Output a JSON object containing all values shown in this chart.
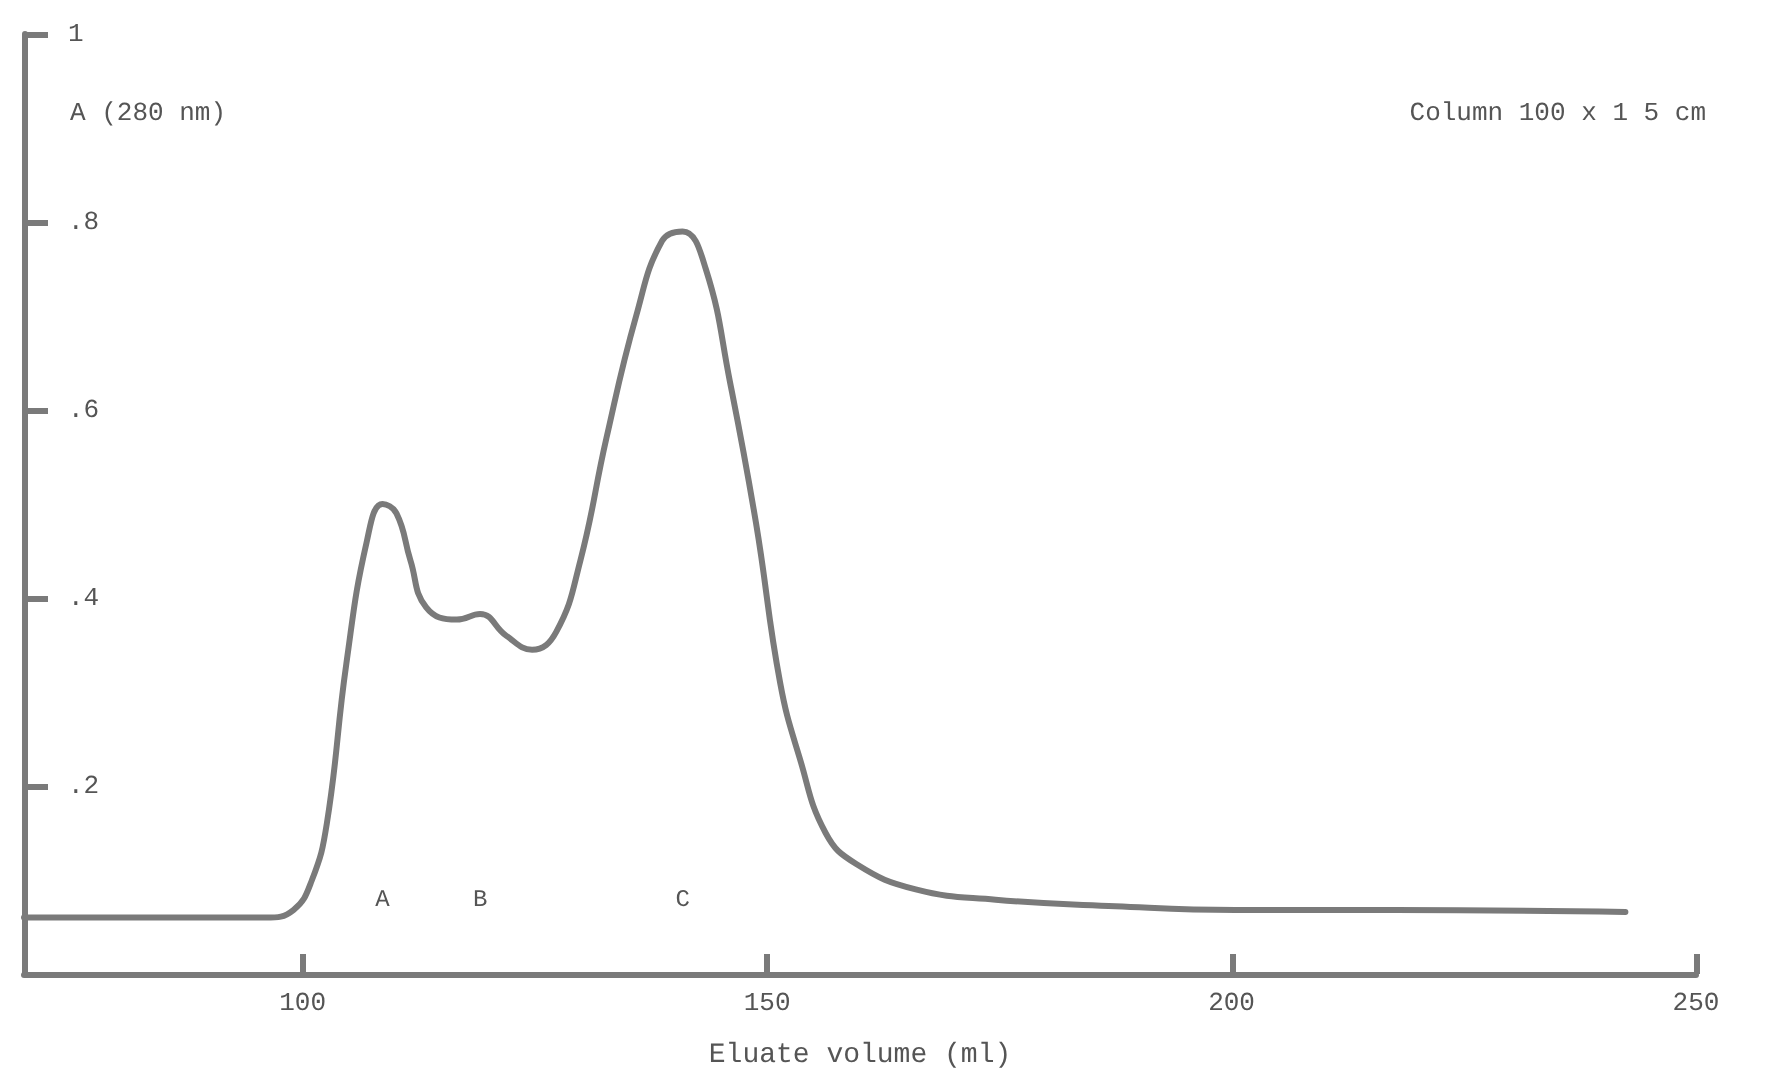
{
  "chart_data": {
    "type": "line",
    "xlabel": "Eluate volume (ml)",
    "ylabel": "A (280 nm)",
    "xlim": [
      70,
      250
    ],
    "xticks": [
      100,
      150,
      200,
      250
    ],
    "ylim": [
      0,
      1
    ],
    "yticks": [
      {
        "value": 0.2,
        "label": ".2"
      },
      {
        "value": 0.4,
        "label": ".4"
      },
      {
        "value": 0.6,
        "label": ".6"
      },
      {
        "value": 0.8,
        "label": ".8"
      },
      1
    ],
    "grid": false,
    "marker": "none",
    "line_style": "solid",
    "series": [
      {
        "color": "#7a7a7a",
        "x": [
          70,
          96,
          99,
          101,
          102.6,
          104.7,
          106.9,
          108.6,
          110.1,
          111.6,
          113.3,
          116.6,
          119.1,
          121.9,
          124.7,
          127.3,
          129.9,
          132.7,
          135.9,
          138.7,
          140.9,
          143.4,
          146,
          148.8,
          151.4,
          153.5,
          156.3,
          159.6,
          166,
          174.6,
          187.5,
          200.4,
          217.6,
          242.4
        ],
        "values": [
          0.06,
          0.06,
          0.068,
          0.1,
          0.16,
          0.33,
          0.46,
          0.5,
          0.49,
          0.44,
          0.39,
          0.377,
          0.383,
          0.36,
          0.345,
          0.364,
          0.44,
          0.57,
          0.7,
          0.78,
          0.79,
          0.75,
          0.63,
          0.48,
          0.31,
          0.23,
          0.15,
          0.117,
          0.09,
          0.079,
          0.072,
          0.068,
          0.068,
          0.066
        ]
      }
    ],
    "annotations": [
      "A",
      "B",
      "C",
      "Column 100 x 1 5 cm"
    ]
  }
}
